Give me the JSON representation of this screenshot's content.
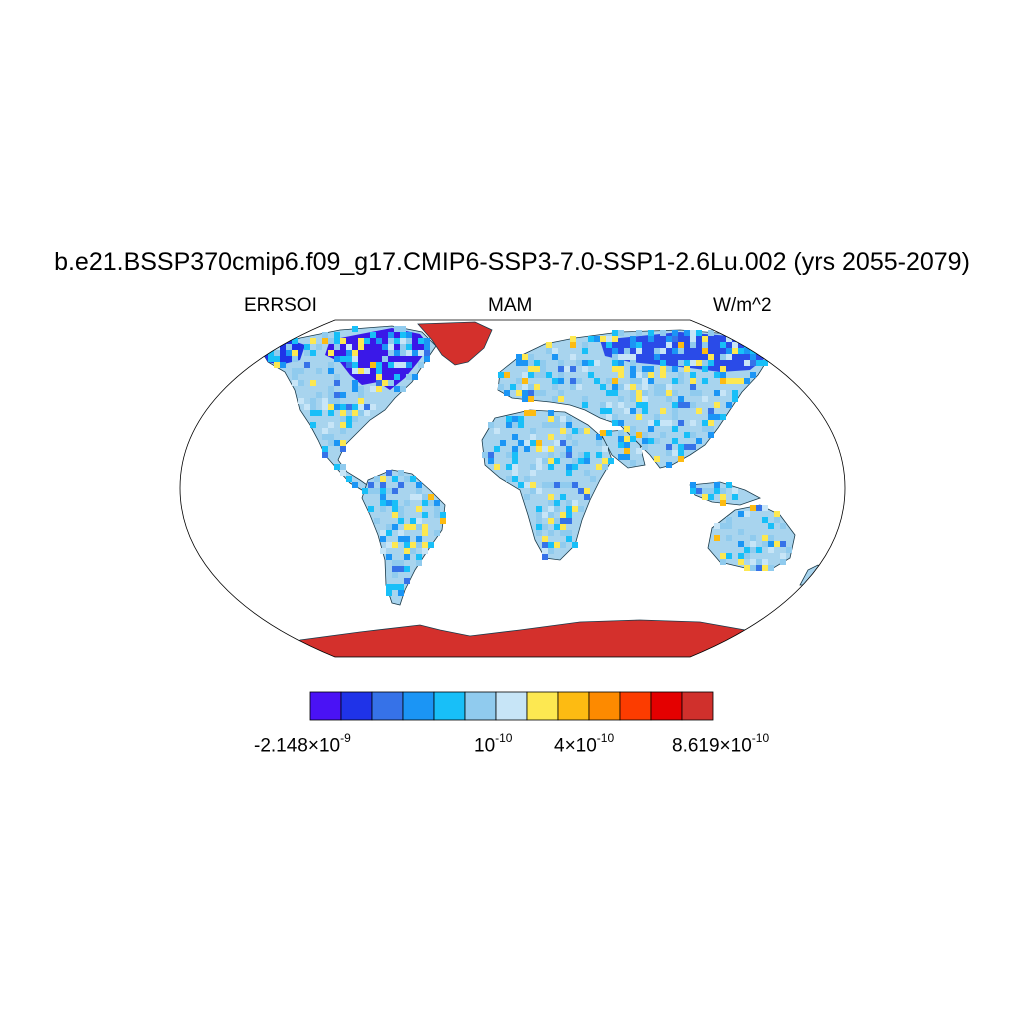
{
  "title": "b.e21.BSSP370cmip6.f09_g17.CMIP6-SSP3-7.0-SSP1-2.6Lu.002 (yrs 2055-2079)",
  "left_label": "ERRSOI",
  "center_label": "MAM",
  "right_label": "W/m^2",
  "colorbar": {
    "colors": [
      "#4a12f5",
      "#1f33e8",
      "#3672e8",
      "#1b95f5",
      "#18bff8",
      "#90cbee",
      "#c7e5f7",
      "#fde851",
      "#fdbb12",
      "#fd8a00",
      "#fc3c00",
      "#e40000",
      "#d0302c"
    ],
    "labels": [
      {
        "mant": "-2.148×10",
        "exp": "-9"
      },
      {
        "mant": "10",
        "exp": "-10"
      },
      {
        "mant": "4×10",
        "exp": "-10"
      },
      {
        "mant": "8.619×10",
        "exp": "-10"
      }
    ]
  },
  "map_colors": {
    "ocean": "#ffffff",
    "land_base": "#a8d4ee",
    "antarctica": "#d4302c",
    "greenland": "#d4302c",
    "coast": "#1a3a4a"
  }
}
